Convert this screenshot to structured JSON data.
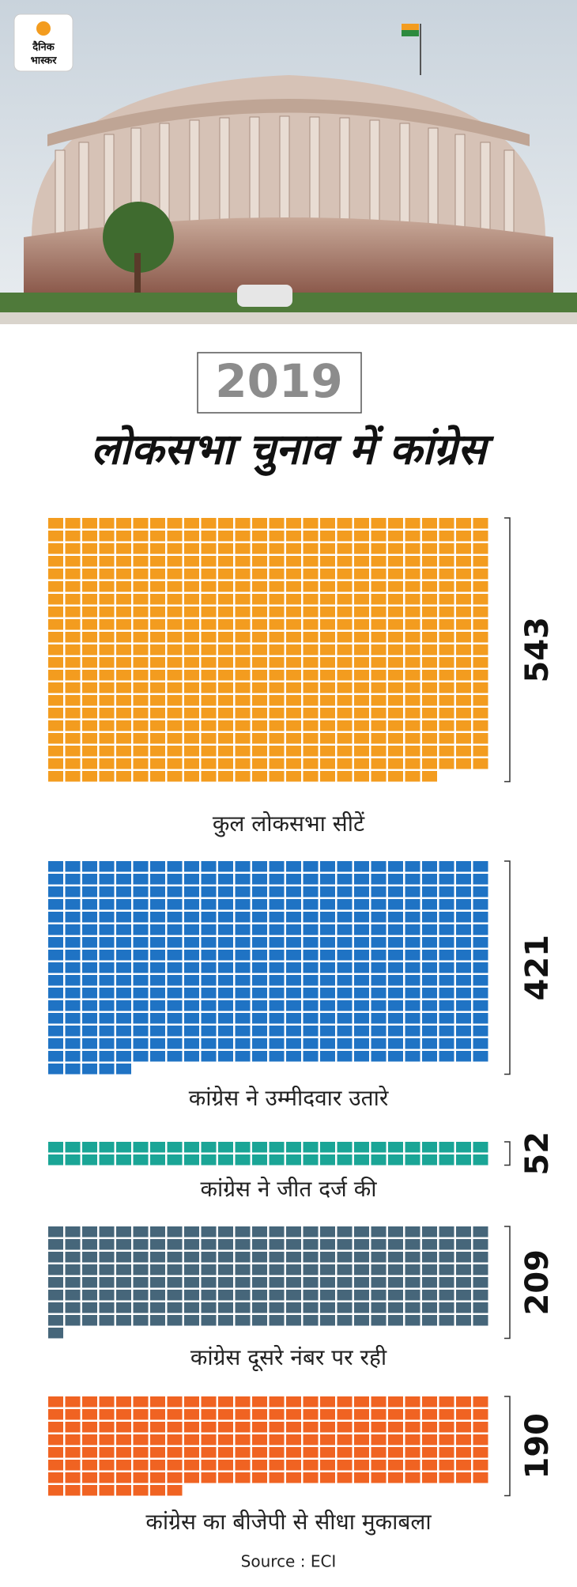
{
  "logo": {
    "line1": "दैनिक",
    "line2": "भास्कर"
  },
  "chart_data": {
    "type": "waffle",
    "year": "2019",
    "title": "लोकसभा चुनाव में कांग्रेस",
    "categories": [
      "कुल लोकसभा सीटें",
      "कांग्रेस ने उम्मीदवार उतारे",
      "कांग्रेस ने जीत दर्ज की",
      "कांग्रेस दूसरे नंबर पर रही",
      "कांग्रेस का बीजेपी से सीधा मुकाबला"
    ],
    "values": [
      543,
      421,
      52,
      209,
      190
    ],
    "colors": [
      "#f39c1f",
      "#1f73c4",
      "#1aa596",
      "#46667a",
      "#f06322"
    ],
    "source": "Source : ECI"
  }
}
